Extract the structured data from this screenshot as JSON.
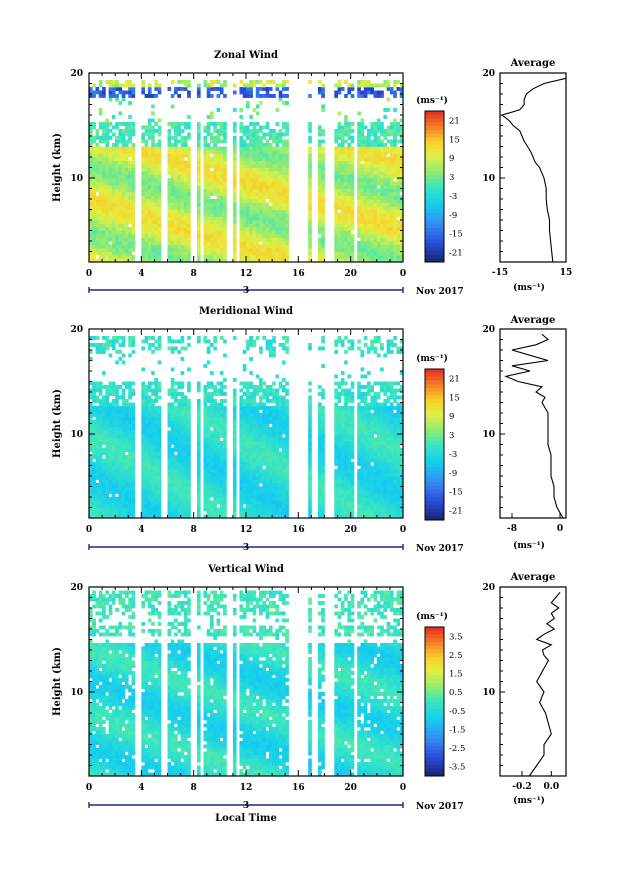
{
  "chart_data": [
    {
      "type": "heatmap",
      "title": "Zonal Wind",
      "ylabel": "Height (km)",
      "xlabel": "",
      "x_ticks": [
        "0",
        "4",
        "8",
        "12",
        "16",
        "20",
        "0"
      ],
      "y_ticks": [
        "10",
        "20"
      ],
      "ylim": [
        2,
        20
      ],
      "xlim": [
        0,
        24
      ],
      "date_label": "3",
      "month_label": "Nov 2017",
      "colorbar": {
        "unit": "(ms⁻¹)",
        "ticks": [
          "21",
          "15",
          "9",
          "3",
          "-3",
          "-9",
          "-15",
          "-21"
        ],
        "range": [
          -24,
          24
        ]
      },
      "missing_columns": [
        3.8,
        5.7,
        8.0,
        8.6,
        10.8,
        11.4,
        15.4,
        15.7,
        16.0,
        16.3,
        16.6,
        17.3,
        18.2,
        18.5,
        20.4
      ],
      "profile": {
        "title": "Average",
        "unit": "(ms⁻¹)",
        "x_ticks": [
          "-15",
          "15"
        ],
        "xlim": [
          -15,
          15
        ],
        "y_ticks": [
          "10",
          "20"
        ],
        "heights": [
          2,
          3,
          4,
          5,
          6,
          7,
          8,
          9,
          10,
          10.5,
          11,
          11.5,
          12,
          12.5,
          13,
          13.5,
          14,
          14.5,
          15,
          15.5,
          16,
          16.5,
          17,
          17.5,
          18,
          18.5,
          19,
          19.5
        ],
        "values": [
          9,
          8.5,
          8,
          7.5,
          7.5,
          6.5,
          6,
          6,
          5,
          4,
          3,
          1,
          0,
          -1,
          -2.5,
          -4,
          -5,
          -6,
          -9,
          -11,
          -14,
          -6,
          -4,
          -4,
          -3,
          0,
          5,
          15
        ]
      }
    },
    {
      "type": "heatmap",
      "title": "Meridional Wind",
      "ylabel": "Height (km)",
      "xlabel": "",
      "x_ticks": [
        "0",
        "4",
        "8",
        "12",
        "16",
        "20",
        "0"
      ],
      "y_ticks": [
        "10",
        "20"
      ],
      "ylim": [
        2,
        20
      ],
      "xlim": [
        0,
        24
      ],
      "date_label": "3",
      "month_label": "Nov 2017",
      "colorbar": {
        "unit": "(ms⁻¹)",
        "ticks": [
          "21",
          "15",
          "9",
          "3",
          "-3",
          "-9",
          "-15",
          "-21"
        ],
        "range": [
          -24,
          24
        ]
      },
      "missing_columns": [
        3.8,
        5.7,
        8.0,
        8.6,
        10.8,
        11.4,
        15.4,
        15.7,
        16.0,
        16.3,
        16.6,
        17.3,
        18.2,
        18.5,
        20.4
      ],
      "profile": {
        "title": "Average",
        "unit": "(ms⁻¹)",
        "x_ticks": [
          "-8",
          "0"
        ],
        "xlim": [
          -10,
          1
        ],
        "y_ticks": [
          "10",
          "20"
        ],
        "heights": [
          2,
          3,
          4,
          5,
          6,
          7,
          8,
          9,
          10,
          11,
          12,
          13,
          13.5,
          14,
          14.5,
          15,
          15.5,
          16,
          16.5,
          17,
          17.5,
          18,
          18.5,
          19,
          19.5
        ],
        "values": [
          0.5,
          -0.5,
          -1,
          -1,
          -1.5,
          -1.5,
          -1.5,
          -2,
          -2,
          -2,
          -2,
          -3,
          -2.5,
          -4,
          -3,
          -7,
          -9,
          -5,
          -8,
          -2,
          -5,
          -8,
          -4,
          -2,
          -3
        ]
      }
    },
    {
      "type": "heatmap",
      "title": "Vertical Wind",
      "ylabel": "Height (km)",
      "xlabel": "Local Time",
      "x_ticks": [
        "0",
        "4",
        "8",
        "12",
        "16",
        "20",
        "0"
      ],
      "y_ticks": [
        "10",
        "20"
      ],
      "ylim": [
        2,
        20
      ],
      "xlim": [
        0,
        24
      ],
      "date_label": "3",
      "month_label": "Nov 2017",
      "colorbar": {
        "unit": "(ms⁻¹)",
        "ticks": [
          "3.5",
          "2.5",
          "1.5",
          "0.5",
          "-0.5",
          "-1.5",
          "-2.5",
          "-3.5"
        ],
        "range": [
          -4,
          4
        ]
      },
      "missing_columns": [
        3.8,
        5.7,
        8.0,
        8.6,
        10.8,
        11.4,
        15.4,
        15.7,
        16.0,
        16.3,
        16.6,
        17.3,
        18.2,
        18.5,
        20.4
      ],
      "profile": {
        "title": "Average",
        "unit": "(ms⁻¹)",
        "x_ticks": [
          "-0.2",
          "0.0"
        ],
        "xlim": [
          -0.35,
          0.1
        ],
        "y_ticks": [
          "10",
          "20"
        ],
        "heights": [
          2,
          3,
          4,
          5,
          6,
          7,
          8,
          9,
          10,
          11,
          12,
          13,
          13.5,
          14,
          14.5,
          15,
          15.5,
          16,
          16.5,
          17,
          17.5,
          18,
          18.5,
          19,
          19.5
        ],
        "values": [
          -0.15,
          -0.1,
          -0.05,
          -0.05,
          0,
          -0.02,
          -0.04,
          -0.08,
          -0.05,
          -0.1,
          -0.06,
          -0.02,
          -0.05,
          -0.06,
          0.0,
          -0.1,
          -0.05,
          0.02,
          -0.03,
          0.02,
          0.0,
          0.05,
          0.0,
          0.03,
          0.06
        ]
      }
    }
  ]
}
